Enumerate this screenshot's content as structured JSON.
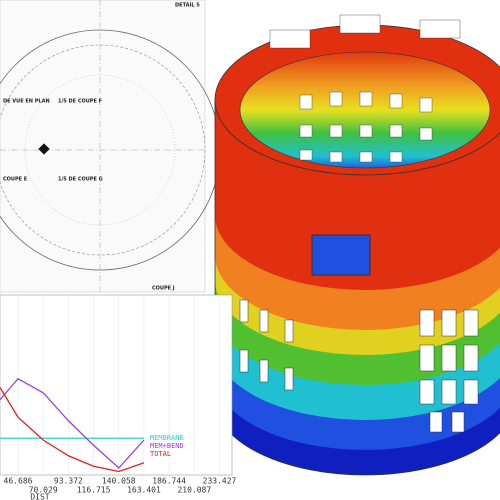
{
  "drawing": {
    "labels": [
      "DETAIL 5",
      "DE VUE EN PLAN",
      "1/5 DE COUPE F",
      "COUPE E",
      "1/5 DE COUPE G",
      "COUPE J"
    ]
  },
  "chart_data": {
    "type": "line",
    "xlabel": "DIST",
    "x": [
      30,
      46.686,
      70.029,
      93.372,
      116.715,
      140.058,
      163.401
    ],
    "series": [
      {
        "name": "MEMBRANE",
        "color": "#33cccc",
        "values": [
          21,
          21,
          21,
          21,
          21,
          21,
          21
        ]
      },
      {
        "name": "MEM+BEND",
        "color": "#a040d0",
        "values": [
          43,
          55,
          47,
          31,
          17,
          4,
          20
        ]
      },
      {
        "name": "TOTAL",
        "color": "#e02020",
        "values": [
          50,
          33,
          20,
          11,
          5,
          2,
          7
        ]
      }
    ],
    "xlim": [
      30,
      245
    ],
    "ylim": [
      0,
      100
    ],
    "xticks": [
      46.686,
      70.029,
      93.372,
      116.715,
      140.058,
      163.401,
      186.744,
      210.087,
      233.427
    ]
  }
}
